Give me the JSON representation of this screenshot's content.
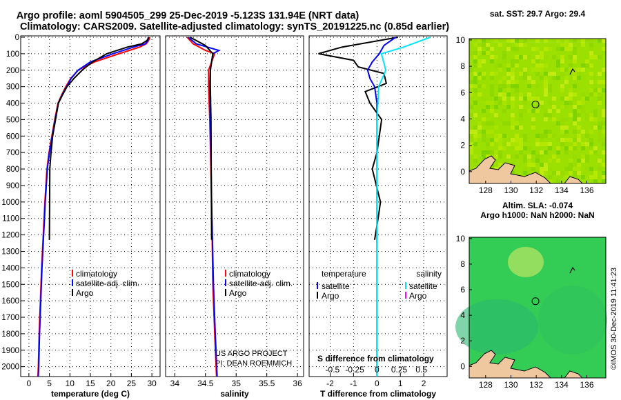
{
  "header": {
    "line1": "Argo profile: aoml 5904505_299 25-Dec-2019 -5.123S 131.94E (NRT data)",
    "line2": "Climatology: CARS2009. Satellite-adjusted climatology: synTS_20191225.nc (0.85d earlier)"
  },
  "side_label": "©IMOS 30-Dec-2019 11:41:23",
  "colors": {
    "climatology": "#ff0000",
    "satellite": "#0000ff",
    "argo": "#000000",
    "salinity_satellite": "#00e5ff",
    "salinity_argo": "#ff00ff",
    "land": "#f0c8a0",
    "sst_base": "#9be000",
    "sla_base": "#33cc55"
  },
  "chart_data": [
    {
      "type": "line",
      "id": "temperature",
      "xlabel": "temperature (deg C)",
      "xlim": [
        -2,
        32
      ],
      "xticks": [
        0,
        5,
        10,
        15,
        20,
        25,
        30
      ],
      "xtick_labels": [
        "0",
        "5",
        "10",
        "15",
        "20",
        "25",
        "30"
      ],
      "ylim": [
        2060,
        0
      ],
      "yticks": [
        0,
        100,
        200,
        300,
        400,
        500,
        600,
        700,
        800,
        900,
        1000,
        1100,
        1200,
        1300,
        1400,
        1500,
        1600,
        1700,
        1800,
        1900,
        2000
      ],
      "ytick_labels": [
        "0",
        "100",
        "200",
        "300",
        "400",
        "500",
        "600",
        "700",
        "800",
        "900",
        "1000",
        "1100",
        "1200",
        "1300",
        "1400",
        "1500",
        "1600",
        "1700",
        "1800",
        "1900",
        "2000"
      ],
      "grid": true,
      "legend": [
        "climatology",
        "satellite-adj. clim.",
        "Argo"
      ],
      "series": [
        {
          "name": "climatology",
          "color_key": "climatology",
          "x": [
            29.5,
            29.2,
            28.6,
            27.0,
            22.0,
            16.0,
            12.0,
            10.2,
            9.0,
            8.0,
            7.1,
            6.3,
            5.6,
            4.9,
            4.4,
            3.9,
            3.5,
            3.1,
            2.8,
            2.5,
            2.3,
            2.2
          ],
          "y": [
            0,
            20,
            40,
            60,
            100,
            150,
            200,
            250,
            300,
            350,
            400,
            500,
            600,
            700,
            800,
            1000,
            1200,
            1400,
            1600,
            1800,
            2000,
            2060
          ]
        },
        {
          "name": "satellite-adj. clim.",
          "color_key": "satellite",
          "x": [
            29.1,
            29.0,
            28.4,
            25.5,
            20.5,
            15.0,
            12.0,
            10.3,
            9.2,
            8.1,
            7.2,
            6.4,
            5.7,
            5.0,
            4.5,
            4.0,
            3.6,
            3.2,
            2.9,
            2.6,
            2.4,
            2.3
          ],
          "y": [
            0,
            20,
            40,
            60,
            100,
            150,
            200,
            250,
            300,
            350,
            400,
            500,
            600,
            700,
            800,
            1000,
            1200,
            1400,
            1600,
            1800,
            2000,
            2060
          ]
        },
        {
          "name": "Argo",
          "color_key": "argo",
          "x": [
            29.3,
            28.8,
            27.5,
            24.0,
            19.0,
            15.5,
            13.0,
            11.0,
            9.3,
            8.2,
            7.2,
            6.5,
            5.8,
            5.4,
            5.1,
            5.0
          ],
          "y": [
            0,
            20,
            40,
            60,
            100,
            150,
            200,
            250,
            300,
            350,
            400,
            500,
            600,
            700,
            800,
            1230
          ]
        }
      ]
    },
    {
      "type": "line",
      "id": "salinity",
      "xlabel": "salinity",
      "xlim": [
        33.85,
        36.1
      ],
      "xticks": [
        34,
        34.5,
        35,
        35.5,
        36
      ],
      "xtick_labels": [
        "34",
        "34.5",
        "35",
        "35.5",
        "36"
      ],
      "ylim": [
        2060,
        0
      ],
      "grid": true,
      "legend": [
        "climatology",
        "satellite-adj. clim.",
        "Argo"
      ],
      "annotations": [
        "US ARGO PROJECT",
        "PI: DEAN ROEMMICH"
      ],
      "series": [
        {
          "name": "climatology",
          "color_key": "climatology",
          "x": [
            34.2,
            34.3,
            34.5,
            34.65,
            34.55,
            34.55,
            34.57,
            34.6,
            34.62,
            34.65,
            34.68
          ],
          "y": [
            0,
            40,
            80,
            100,
            200,
            300,
            500,
            1000,
            1500,
            1800,
            2060
          ]
        },
        {
          "name": "satellite-adj. clim.",
          "color_key": "satellite",
          "x": [
            34.22,
            34.35,
            34.72,
            34.62,
            34.58,
            34.57,
            34.58,
            34.6,
            34.63,
            34.66,
            34.69
          ],
          "y": [
            0,
            40,
            80,
            100,
            200,
            300,
            500,
            1000,
            1500,
            1800,
            2060
          ]
        },
        {
          "name": "Argo",
          "color_key": "argo",
          "x": [
            34.25,
            34.5,
            34.62,
            34.6,
            34.58,
            34.58,
            34.59,
            34.6
          ],
          "y": [
            0,
            50,
            100,
            150,
            200,
            300,
            500,
            1230
          ]
        }
      ]
    },
    {
      "type": "line",
      "id": "differences",
      "xlabel": "T difference from climatology",
      "xlabel2": "S difference from climatology",
      "xlim": [
        -2.9,
        3.0
      ],
      "xticks": [
        -2,
        -1,
        0,
        1,
        2
      ],
      "xtick_labels": [
        "-2",
        "-1",
        "0",
        "1",
        "2"
      ],
      "s_xticks": [
        -0.5,
        -0.25,
        0,
        0.25,
        0.5
      ],
      "s_xtick_labels": [
        "-0.5",
        "-0.25",
        "0",
        "0.25",
        "0.5"
      ],
      "ylim": [
        2060,
        0
      ],
      "grid": true,
      "legend_temperature": {
        "title": "temperature",
        "items": [
          "satellite",
          "Argo"
        ]
      },
      "legend_salinity": {
        "title": "salinity",
        "items": [
          "satellite",
          "Argo"
        ]
      },
      "series": [
        {
          "name": "T Argo",
          "color_key": "argo",
          "x": [
            0.9,
            -1.5,
            -2.5,
            -1.0,
            -0.8,
            0.3,
            0.4,
            -0.5,
            -0.3,
            0.2,
            0.1,
            0.0,
            -0.2,
            0.15,
            0.05,
            -0.1
          ],
          "y": [
            0,
            60,
            100,
            140,
            180,
            220,
            280,
            330,
            400,
            500,
            600,
            700,
            800,
            1000,
            1100,
            1230
          ]
        },
        {
          "name": "T satellite",
          "color_key": "satellite",
          "x": [
            0.8,
            0.3,
            0.1,
            -0.2,
            -0.4,
            -0.3,
            -0.1,
            0.0,
            0.0,
            0.0,
            0.0
          ],
          "y": [
            0,
            50,
            100,
            150,
            200,
            250,
            300,
            400,
            600,
            1000,
            2060
          ]
        },
        {
          "name": "S satellite",
          "color_key": "salinity_satellite",
          "x": [
            0.6,
            0.3,
            0.05,
            0.1,
            0.02,
            0.0,
            0.0,
            0.0
          ],
          "y": [
            0,
            60,
            100,
            200,
            300,
            500,
            1200,
            2060
          ]
        }
      ]
    },
    {
      "type": "heatmap",
      "id": "sst_map",
      "title": "sat. SST: 29.7 Argo: 29.4",
      "xlim": [
        126.7,
        137.5
      ],
      "ylim": [
        -0.9,
        10.1
      ],
      "xticks": [
        128,
        130,
        132,
        134,
        136
      ],
      "xtick_labels": [
        "128",
        "130",
        "132",
        "134",
        "136"
      ],
      "yticks": [
        0,
        2,
        4,
        6,
        8,
        10
      ],
      "ytick_labels": [
        "0",
        "2",
        "4",
        "6",
        "8",
        "10"
      ],
      "marker": {
        "lon": 131.94,
        "lat": 5.1
      }
    },
    {
      "type": "heatmap",
      "id": "sla_map",
      "title": "Altim. SLA: -0.074",
      "subtitle": "Argo h1000: NaN h2000: NaN",
      "xlim": [
        126.7,
        137.5
      ],
      "ylim": [
        -0.9,
        10.1
      ],
      "xticks": [
        128,
        130,
        132,
        134,
        136
      ],
      "xtick_labels": [
        "128",
        "130",
        "132",
        "134",
        "136"
      ],
      "yticks": [
        0,
        2,
        4,
        6,
        8,
        10
      ],
      "ytick_labels": [
        "0",
        "2",
        "4",
        "6",
        "8",
        "10"
      ],
      "marker": {
        "lon": 131.94,
        "lat": 5.1
      }
    }
  ]
}
